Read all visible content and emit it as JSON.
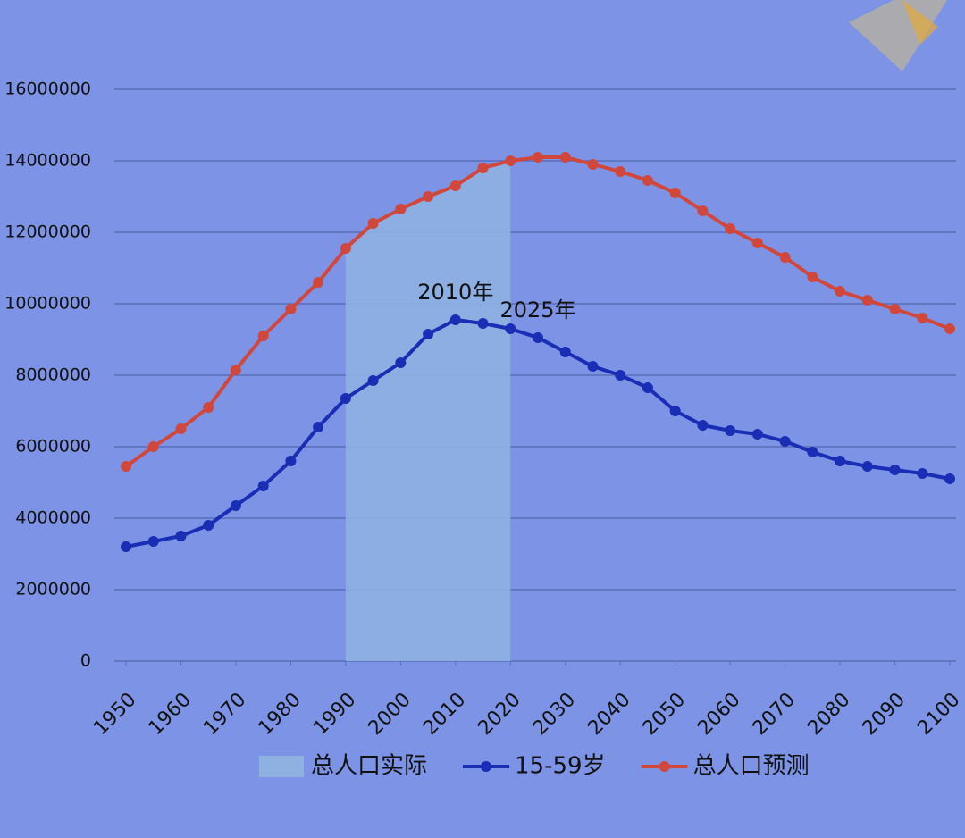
{
  "chart_data": {
    "type": "line",
    "x": [
      1950,
      1955,
      1960,
      1965,
      1970,
      1975,
      1980,
      1985,
      1990,
      1995,
      2000,
      2005,
      2010,
      2015,
      2020,
      2025,
      2030,
      2035,
      2040,
      2045,
      2050,
      2055,
      2060,
      2065,
      2070,
      2075,
      2080,
      2085,
      2090,
      2095,
      2100
    ],
    "series": [
      {
        "name": "总人口实际",
        "type": "area",
        "color": "#8fb1e2",
        "values": [
          null,
          null,
          null,
          null,
          null,
          null,
          null,
          null,
          11550000,
          12250000,
          12650000,
          13000000,
          13300000,
          13800000,
          14000000,
          null,
          null,
          null,
          null,
          null,
          null,
          null,
          null,
          null,
          null,
          null,
          null,
          null,
          null,
          null,
          null
        ]
      },
      {
        "name": "15-59岁",
        "type": "line",
        "color": "#1a2db5",
        "values": [
          3200000,
          3350000,
          3500000,
          3800000,
          4350000,
          4900000,
          5600000,
          6550000,
          7350000,
          7850000,
          8350000,
          9150000,
          9550000,
          9450000,
          9300000,
          9050000,
          8650000,
          8250000,
          8000000,
          7650000,
          7000000,
          6600000,
          6450000,
          6350000,
          6150000,
          5850000,
          5600000,
          5450000,
          5350000,
          5250000,
          5100000
        ]
      },
      {
        "name": "总人口预测",
        "type": "line",
        "color": "#d2473c",
        "values": [
          5450000,
          6000000,
          6500000,
          7100000,
          8150000,
          9100000,
          9850000,
          10600000,
          11550000,
          12250000,
          12650000,
          13000000,
          13300000,
          13800000,
          14000000,
          14100000,
          14100000,
          13900000,
          13700000,
          13450000,
          13100000,
          12600000,
          12100000,
          11700000,
          11300000,
          10750000,
          10350000,
          10100000,
          9850000,
          9600000,
          9300000
        ]
      }
    ],
    "annotations": [
      {
        "text": "2025年",
        "x": 2025
      },
      {
        "text": "2010年",
        "x": 2010
      }
    ],
    "xlim": [
      1950,
      2100
    ],
    "xticks": [
      1950,
      1960,
      1970,
      1980,
      1990,
      2000,
      2010,
      2020,
      2030,
      2040,
      2050,
      2060,
      2070,
      2080,
      2090,
      2100
    ],
    "ylim": [
      0,
      16000000
    ],
    "yticks": [
      0,
      2000000,
      4000000,
      6000000,
      8000000,
      10000000,
      12000000,
      14000000,
      16000000
    ],
    "grid": true,
    "legend": "bottom"
  }
}
